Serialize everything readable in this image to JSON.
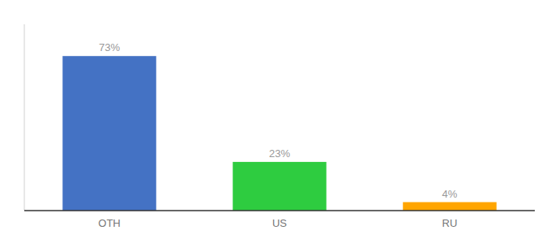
{
  "chart_data": {
    "type": "bar",
    "categories": [
      "OTH",
      "US",
      "RU"
    ],
    "values": [
      73,
      23,
      4
    ],
    "value_labels": [
      "73%",
      "23%",
      "4%"
    ],
    "colors": [
      "#4472C4",
      "#2ECC40",
      "#FFA500"
    ],
    "ylim": [
      0,
      88
    ],
    "data_labels": true,
    "tick_labels": "x",
    "grid": false
  }
}
